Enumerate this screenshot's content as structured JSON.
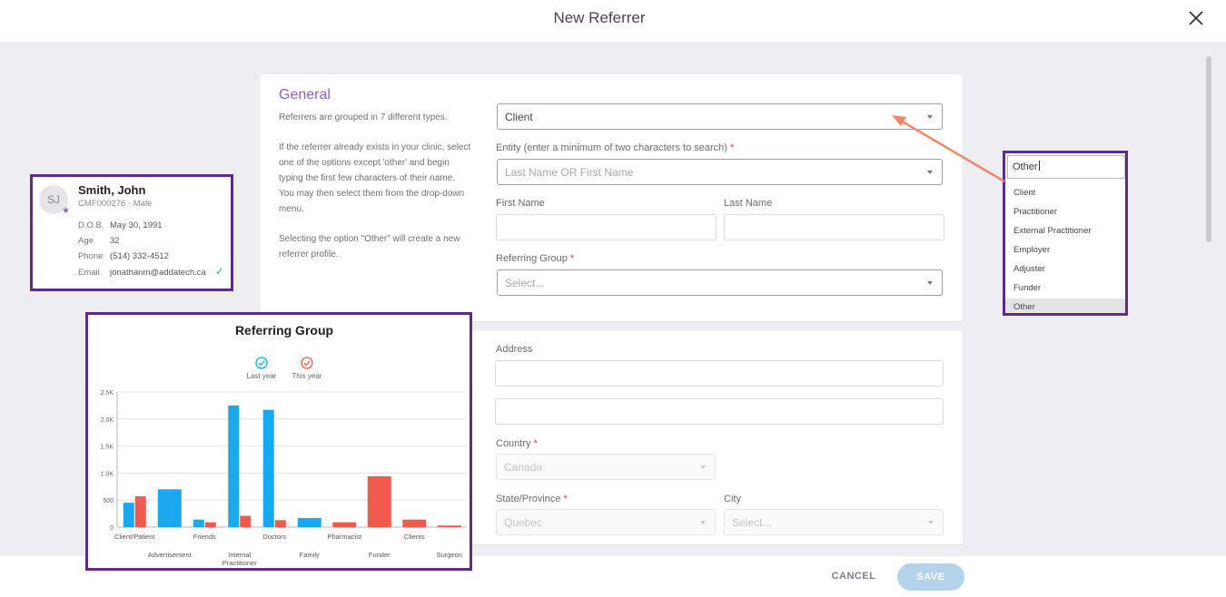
{
  "header": {
    "title": "New Referrer"
  },
  "general": {
    "title": "General",
    "text1": "Referrers are grouped in 7 different types.",
    "text2_lines": [
      "If the referrer already exists in your clinic, select",
      "one of the options except 'other' and begin",
      "typing the first few characters of their name.",
      "You may then select them from the drop-down",
      "menu."
    ],
    "text3_lines": [
      "Selecting the option \"Other\" will create a new",
      "referrer profile."
    ]
  },
  "form": {
    "type_value": "Client",
    "entity_label": "Entity (enter a minimum of two characters to search)",
    "entity_placeholder": "Last Name OR First Name",
    "first_name_label": "First Name",
    "last_name_label": "Last Name",
    "referring_group_label": "Referring Group",
    "referring_group_placeholder": "Select...",
    "address_label": "Address",
    "country_label": "Country",
    "country_value": "Canada",
    "state_label": "State/Province",
    "state_value": "Quebec",
    "city_label": "City",
    "city_placeholder": "Select...",
    "required_mark": "*"
  },
  "actions": {
    "cancel": "CANCEL",
    "save": "SAVE"
  },
  "patient": {
    "initials": "SJ",
    "name": "Smith, John",
    "id_line": "CMF000276 · Male",
    "rows": [
      {
        "label": "D.O.B.",
        "value": "May 30, 1991"
      },
      {
        "label": "Age",
        "value": "32"
      },
      {
        "label": "Phone",
        "value": "(514) 332-4512"
      },
      {
        "label": "Email",
        "value": "jonathanm@addatech.ca"
      }
    ]
  },
  "type_dropdown": {
    "input_value": "Other",
    "options": [
      "Client",
      "Practitioner",
      "External Practitioner",
      "Employer",
      "Adjuster",
      "Funder",
      "Other"
    ],
    "selected": "Other"
  },
  "colors": {
    "accent": "#8a63b3",
    "highlight_border": "#5c2d82",
    "last_year": "#1aa8ee",
    "this_year": "#f25a50",
    "arrow": "#f0876a"
  },
  "chart_data": {
    "type": "bar",
    "title": "Referring Group",
    "legend_position": "top",
    "categories": [
      "Client/Patient",
      "Advertisement",
      "Friends",
      "Internal Practitioner",
      "Doctors",
      "Family",
      "Pharmacist",
      "Funder",
      "Clients",
      "Surgeon"
    ],
    "series": [
      {
        "name": "Last year",
        "values": [
          450,
          700,
          140,
          2250,
          2170,
          170,
          0,
          0,
          0,
          0
        ]
      },
      {
        "name": "This year",
        "values": [
          570,
          0,
          90,
          210,
          130,
          0,
          90,
          940,
          140,
          30
        ]
      }
    ],
    "y_ticks": [
      "0",
      "500",
      "1.0K",
      "1.5K",
      "2.0K",
      "2.5K"
    ],
    "ylim": [
      0,
      2500
    ],
    "grid": true
  }
}
